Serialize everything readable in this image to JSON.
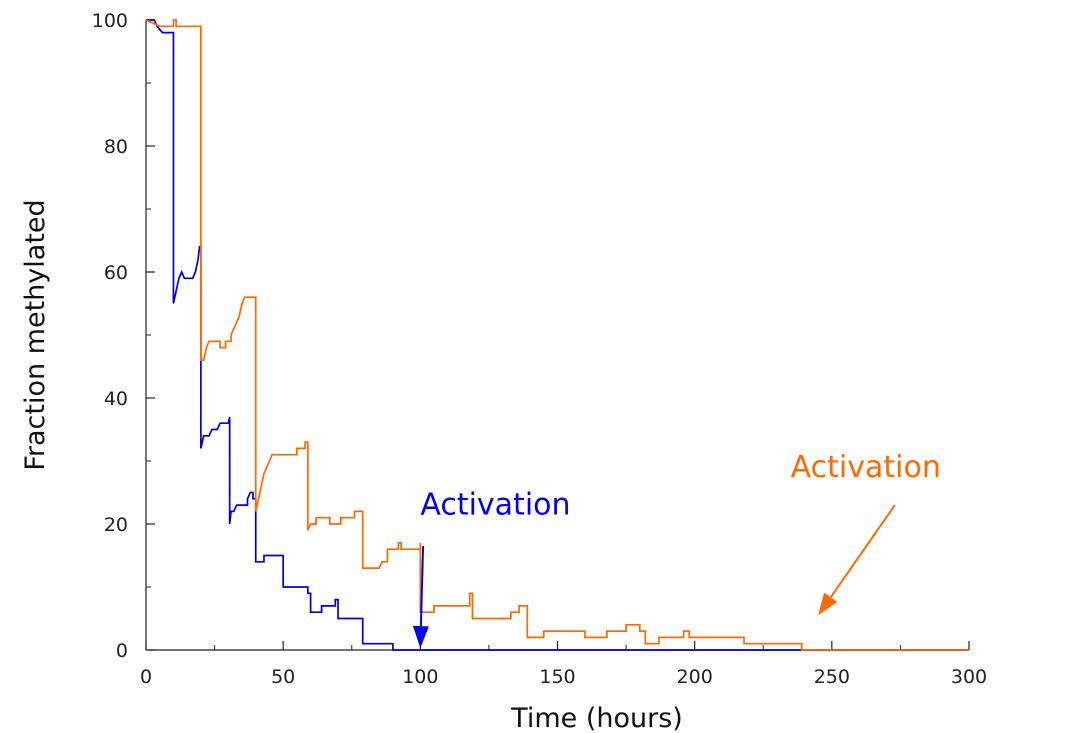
{
  "chart_data": {
    "type": "line",
    "title": "",
    "xlabel": "Time (hours)",
    "ylabel": "Fraction methylated",
    "xlim": [
      0,
      300
    ],
    "ylim": [
      0,
      100
    ],
    "xticks": [
      0,
      50,
      100,
      150,
      200,
      250,
      300
    ],
    "yticks": [
      0,
      20,
      40,
      60,
      80,
      100
    ],
    "x_tick_labels": [
      "0",
      "50",
      "100",
      "150",
      "200",
      "250",
      "300"
    ],
    "y_tick_labels": [
      "0",
      "20",
      "40",
      "60",
      "80",
      "100"
    ],
    "grid": false,
    "legend": "none",
    "series": [
      {
        "color": "#0000dd",
        "points": [
          [
            0,
            100
          ],
          [
            3,
            100
          ],
          [
            4,
            99
          ],
          [
            6,
            98
          ],
          [
            10,
            98
          ],
          [
            10,
            55
          ],
          [
            11,
            57
          ],
          [
            12,
            59
          ],
          [
            13,
            60
          ],
          [
            14,
            59
          ],
          [
            17,
            59
          ],
          [
            18,
            60
          ],
          [
            19,
            62
          ],
          [
            19.5,
            64
          ],
          [
            20,
            64
          ],
          [
            20,
            32
          ],
          [
            21,
            34
          ],
          [
            23,
            34
          ],
          [
            24,
            35
          ],
          [
            26,
            35
          ],
          [
            27,
            36
          ],
          [
            30,
            36
          ],
          [
            30.5,
            37
          ],
          [
            30.5,
            20
          ],
          [
            31,
            22
          ],
          [
            32,
            22
          ],
          [
            33,
            23
          ],
          [
            37,
            23
          ],
          [
            37,
            24
          ],
          [
            38,
            25
          ],
          [
            39,
            25
          ],
          [
            39,
            24
          ],
          [
            40,
            24
          ],
          [
            40,
            14
          ],
          [
            43,
            14
          ],
          [
            43,
            15
          ],
          [
            50,
            15
          ],
          [
            50,
            10
          ],
          [
            59,
            10
          ],
          [
            59,
            9
          ],
          [
            60,
            9
          ],
          [
            60,
            6
          ],
          [
            64,
            6
          ],
          [
            64,
            7
          ],
          [
            69,
            7
          ],
          [
            69,
            8
          ],
          [
            70,
            8
          ],
          [
            70,
            5
          ],
          [
            79,
            5
          ],
          [
            79,
            1
          ],
          [
            90,
            1
          ],
          [
            90,
            0
          ],
          [
            300,
            0
          ]
        ]
      },
      {
        "color": "#ff6a00",
        "points": [
          [
            0,
            100
          ],
          [
            5,
            99
          ],
          [
            10,
            99
          ],
          [
            10,
            100
          ],
          [
            11,
            100
          ],
          [
            11,
            99
          ],
          [
            20,
            99
          ],
          [
            20,
            46
          ],
          [
            21,
            46
          ],
          [
            22,
            48
          ],
          [
            23,
            49
          ],
          [
            27,
            49
          ],
          [
            27,
            48
          ],
          [
            29,
            48
          ],
          [
            29,
            49
          ],
          [
            31,
            49
          ],
          [
            31,
            50
          ],
          [
            32,
            51
          ],
          [
            33,
            52
          ],
          [
            34,
            53
          ],
          [
            35,
            55
          ],
          [
            36,
            56
          ],
          [
            40,
            56
          ],
          [
            40,
            22
          ],
          [
            41,
            24
          ],
          [
            42,
            26
          ],
          [
            43,
            28
          ],
          [
            44,
            29
          ],
          [
            45,
            30
          ],
          [
            46,
            31
          ],
          [
            55,
            31
          ],
          [
            55,
            32
          ],
          [
            58,
            32
          ],
          [
            58,
            33
          ],
          [
            59,
            33
          ],
          [
            59,
            19
          ],
          [
            60,
            20
          ],
          [
            62,
            20
          ],
          [
            62,
            21
          ],
          [
            67,
            21
          ],
          [
            67,
            20
          ],
          [
            71,
            20
          ],
          [
            71,
            21
          ],
          [
            76,
            21
          ],
          [
            76,
            22
          ],
          [
            79,
            22
          ],
          [
            79,
            13
          ],
          [
            85,
            13
          ],
          [
            86,
            14
          ],
          [
            88,
            14
          ],
          [
            88,
            16
          ],
          [
            92,
            16
          ],
          [
            92,
            17
          ],
          [
            93,
            17
          ],
          [
            93,
            16
          ],
          [
            100,
            16
          ],
          [
            100,
            17
          ],
          [
            100,
            6
          ],
          [
            105,
            6
          ],
          [
            105,
            7
          ],
          [
            118,
            7
          ],
          [
            118,
            9
          ],
          [
            119,
            9
          ],
          [
            119,
            5
          ],
          [
            133,
            5
          ],
          [
            133,
            6
          ],
          [
            136,
            6
          ],
          [
            136,
            7
          ],
          [
            139,
            7
          ],
          [
            139,
            2
          ],
          [
            145,
            2
          ],
          [
            145,
            3
          ],
          [
            160,
            3
          ],
          [
            160,
            2
          ],
          [
            168,
            2
          ],
          [
            168,
            3
          ],
          [
            175,
            3
          ],
          [
            175,
            4
          ],
          [
            180,
            4
          ],
          [
            180,
            3
          ],
          [
            182,
            3
          ],
          [
            182,
            1
          ],
          [
            187,
            1
          ],
          [
            187,
            2
          ],
          [
            196,
            2
          ],
          [
            196,
            3
          ],
          [
            198,
            3
          ],
          [
            198,
            2
          ],
          [
            218,
            2
          ],
          [
            218,
            1
          ],
          [
            239,
            1
          ],
          [
            239,
            0
          ],
          [
            300,
            0
          ]
        ]
      }
    ],
    "annotations": [
      {
        "text": "Activation",
        "color": "#0000ee",
        "text_x": 100,
        "text_y": 21.5,
        "tail_x": 101,
        "tail_y": 16.5,
        "head_x": 100,
        "head_y": 0.3
      },
      {
        "text": "Activation",
        "color": "#ff6a00",
        "text_x": 235,
        "text_y": 27.5,
        "tail_x": 273,
        "tail_y": 23,
        "head_x": 245,
        "head_y": 5.5
      }
    ]
  }
}
